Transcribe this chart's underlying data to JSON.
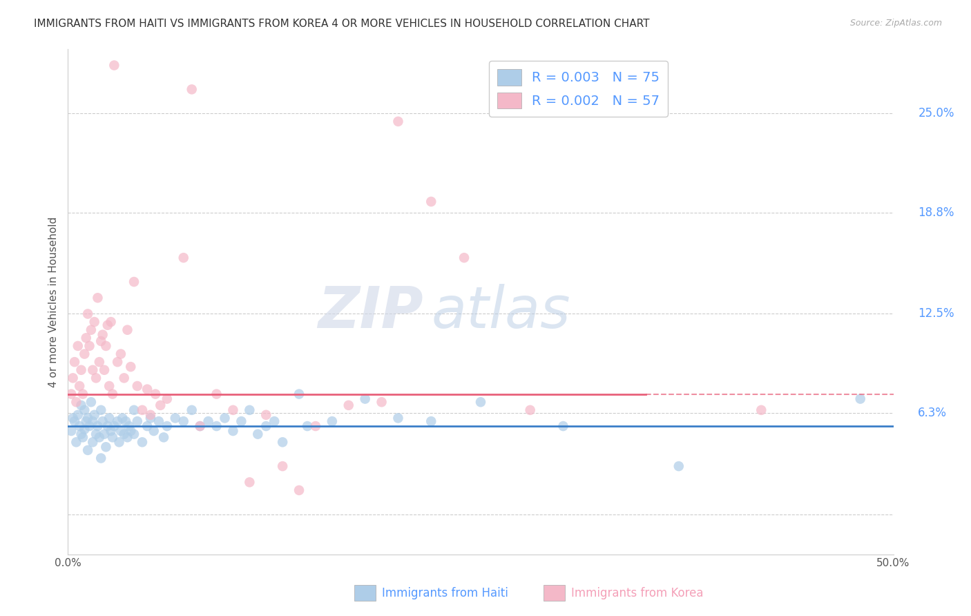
{
  "title": "IMMIGRANTS FROM HAITI VS IMMIGRANTS FROM KOREA 4 OR MORE VEHICLES IN HOUSEHOLD CORRELATION CHART",
  "source": "Source: ZipAtlas.com",
  "ylabel": "4 or more Vehicles in Household",
  "xlabel_haiti": "Immigrants from Haiti",
  "xlabel_korea": "Immigrants from Korea",
  "xlim": [
    0.0,
    50.0
  ],
  "ylim": [
    0.0,
    25.0
  ],
  "yticks": [
    0.0,
    6.3,
    12.5,
    18.8,
    25.0
  ],
  "ytick_labels": [
    "",
    "6.3%",
    "12.5%",
    "18.8%",
    "25.0%"
  ],
  "xticks": [
    0.0,
    10.0,
    20.0,
    30.0,
    40.0,
    50.0
  ],
  "xtick_labels": [
    "0.0%",
    "",
    "",
    "",
    "",
    "50.0%"
  ],
  "haiti_R": "0.003",
  "haiti_N": "75",
  "korea_R": "0.002",
  "korea_N": "57",
  "haiti_color": "#aecde8",
  "korea_color": "#f4b8c8",
  "haiti_line_color": "#3a7ec8",
  "korea_line_color": "#e8607a",
  "background_color": "#ffffff",
  "watermark_zip": "ZIP",
  "watermark_atlas": "atlas",
  "haiti_line_y": 5.5,
  "korea_line_y": 7.5,
  "haiti_points": [
    [
      0.2,
      5.2
    ],
    [
      0.3,
      6.0
    ],
    [
      0.4,
      5.8
    ],
    [
      0.5,
      4.5
    ],
    [
      0.6,
      6.2
    ],
    [
      0.7,
      5.5
    ],
    [
      0.8,
      6.8
    ],
    [
      0.8,
      5.0
    ],
    [
      0.9,
      4.8
    ],
    [
      1.0,
      6.5
    ],
    [
      1.0,
      5.3
    ],
    [
      1.1,
      5.8
    ],
    [
      1.2,
      4.0
    ],
    [
      1.2,
      6.0
    ],
    [
      1.3,
      5.5
    ],
    [
      1.4,
      7.0
    ],
    [
      1.5,
      4.5
    ],
    [
      1.5,
      5.8
    ],
    [
      1.6,
      6.2
    ],
    [
      1.7,
      5.0
    ],
    [
      1.8,
      5.5
    ],
    [
      1.9,
      4.8
    ],
    [
      2.0,
      6.5
    ],
    [
      2.0,
      3.5
    ],
    [
      2.1,
      5.8
    ],
    [
      2.2,
      5.0
    ],
    [
      2.3,
      4.2
    ],
    [
      2.4,
      5.5
    ],
    [
      2.5,
      6.0
    ],
    [
      2.6,
      5.2
    ],
    [
      2.7,
      4.8
    ],
    [
      2.8,
      5.5
    ],
    [
      3.0,
      5.8
    ],
    [
      3.1,
      4.5
    ],
    [
      3.2,
      5.2
    ],
    [
      3.3,
      6.0
    ],
    [
      3.4,
      5.0
    ],
    [
      3.5,
      5.8
    ],
    [
      3.6,
      4.8
    ],
    [
      3.7,
      5.5
    ],
    [
      3.8,
      5.2
    ],
    [
      4.0,
      6.5
    ],
    [
      4.0,
      5.0
    ],
    [
      4.2,
      5.8
    ],
    [
      4.5,
      4.5
    ],
    [
      4.8,
      5.5
    ],
    [
      5.0,
      6.0
    ],
    [
      5.2,
      5.2
    ],
    [
      5.5,
      5.8
    ],
    [
      5.8,
      4.8
    ],
    [
      6.0,
      5.5
    ],
    [
      6.5,
      6.0
    ],
    [
      7.0,
      5.8
    ],
    [
      7.5,
      6.5
    ],
    [
      8.0,
      5.5
    ],
    [
      8.5,
      5.8
    ],
    [
      9.0,
      5.5
    ],
    [
      9.5,
      6.0
    ],
    [
      10.0,
      5.2
    ],
    [
      10.5,
      5.8
    ],
    [
      11.0,
      6.5
    ],
    [
      11.5,
      5.0
    ],
    [
      12.0,
      5.5
    ],
    [
      12.5,
      5.8
    ],
    [
      13.0,
      4.5
    ],
    [
      14.0,
      7.5
    ],
    [
      14.5,
      5.5
    ],
    [
      16.0,
      5.8
    ],
    [
      18.0,
      7.2
    ],
    [
      20.0,
      6.0
    ],
    [
      22.0,
      5.8
    ],
    [
      25.0,
      7.0
    ],
    [
      30.0,
      5.5
    ],
    [
      37.0,
      3.0
    ],
    [
      48.0,
      7.2
    ]
  ],
  "korea_points": [
    [
      0.2,
      7.5
    ],
    [
      0.3,
      8.5
    ],
    [
      0.4,
      9.5
    ],
    [
      0.5,
      7.0
    ],
    [
      0.6,
      10.5
    ],
    [
      0.7,
      8.0
    ],
    [
      0.8,
      9.0
    ],
    [
      0.9,
      7.5
    ],
    [
      1.0,
      10.0
    ],
    [
      1.1,
      11.0
    ],
    [
      1.2,
      12.5
    ],
    [
      1.3,
      10.5
    ],
    [
      1.4,
      11.5
    ],
    [
      1.5,
      9.0
    ],
    [
      1.6,
      12.0
    ],
    [
      1.7,
      8.5
    ],
    [
      1.8,
      13.5
    ],
    [
      1.9,
      9.5
    ],
    [
      2.0,
      10.8
    ],
    [
      2.1,
      11.2
    ],
    [
      2.2,
      9.0
    ],
    [
      2.3,
      10.5
    ],
    [
      2.4,
      11.8
    ],
    [
      2.5,
      8.0
    ],
    [
      2.6,
      12.0
    ],
    [
      2.7,
      7.5
    ],
    [
      3.0,
      9.5
    ],
    [
      3.2,
      10.0
    ],
    [
      3.4,
      8.5
    ],
    [
      3.6,
      11.5
    ],
    [
      3.8,
      9.2
    ],
    [
      4.0,
      14.5
    ],
    [
      4.2,
      8.0
    ],
    [
      4.5,
      6.5
    ],
    [
      4.8,
      7.8
    ],
    [
      5.0,
      6.2
    ],
    [
      5.3,
      7.5
    ],
    [
      5.6,
      6.8
    ],
    [
      6.0,
      7.2
    ],
    [
      7.0,
      16.0
    ],
    [
      8.0,
      5.5
    ],
    [
      9.0,
      7.5
    ],
    [
      10.0,
      6.5
    ],
    [
      11.0,
      2.0
    ],
    [
      12.0,
      6.2
    ],
    [
      13.0,
      3.0
    ],
    [
      14.0,
      1.5
    ],
    [
      15.0,
      5.5
    ],
    [
      17.0,
      6.8
    ],
    [
      19.0,
      7.0
    ],
    [
      20.0,
      24.5
    ],
    [
      22.0,
      19.5
    ],
    [
      24.0,
      16.0
    ],
    [
      28.0,
      6.5
    ],
    [
      42.0,
      6.5
    ],
    [
      7.5,
      26.5
    ],
    [
      2.8,
      28.0
    ]
  ]
}
